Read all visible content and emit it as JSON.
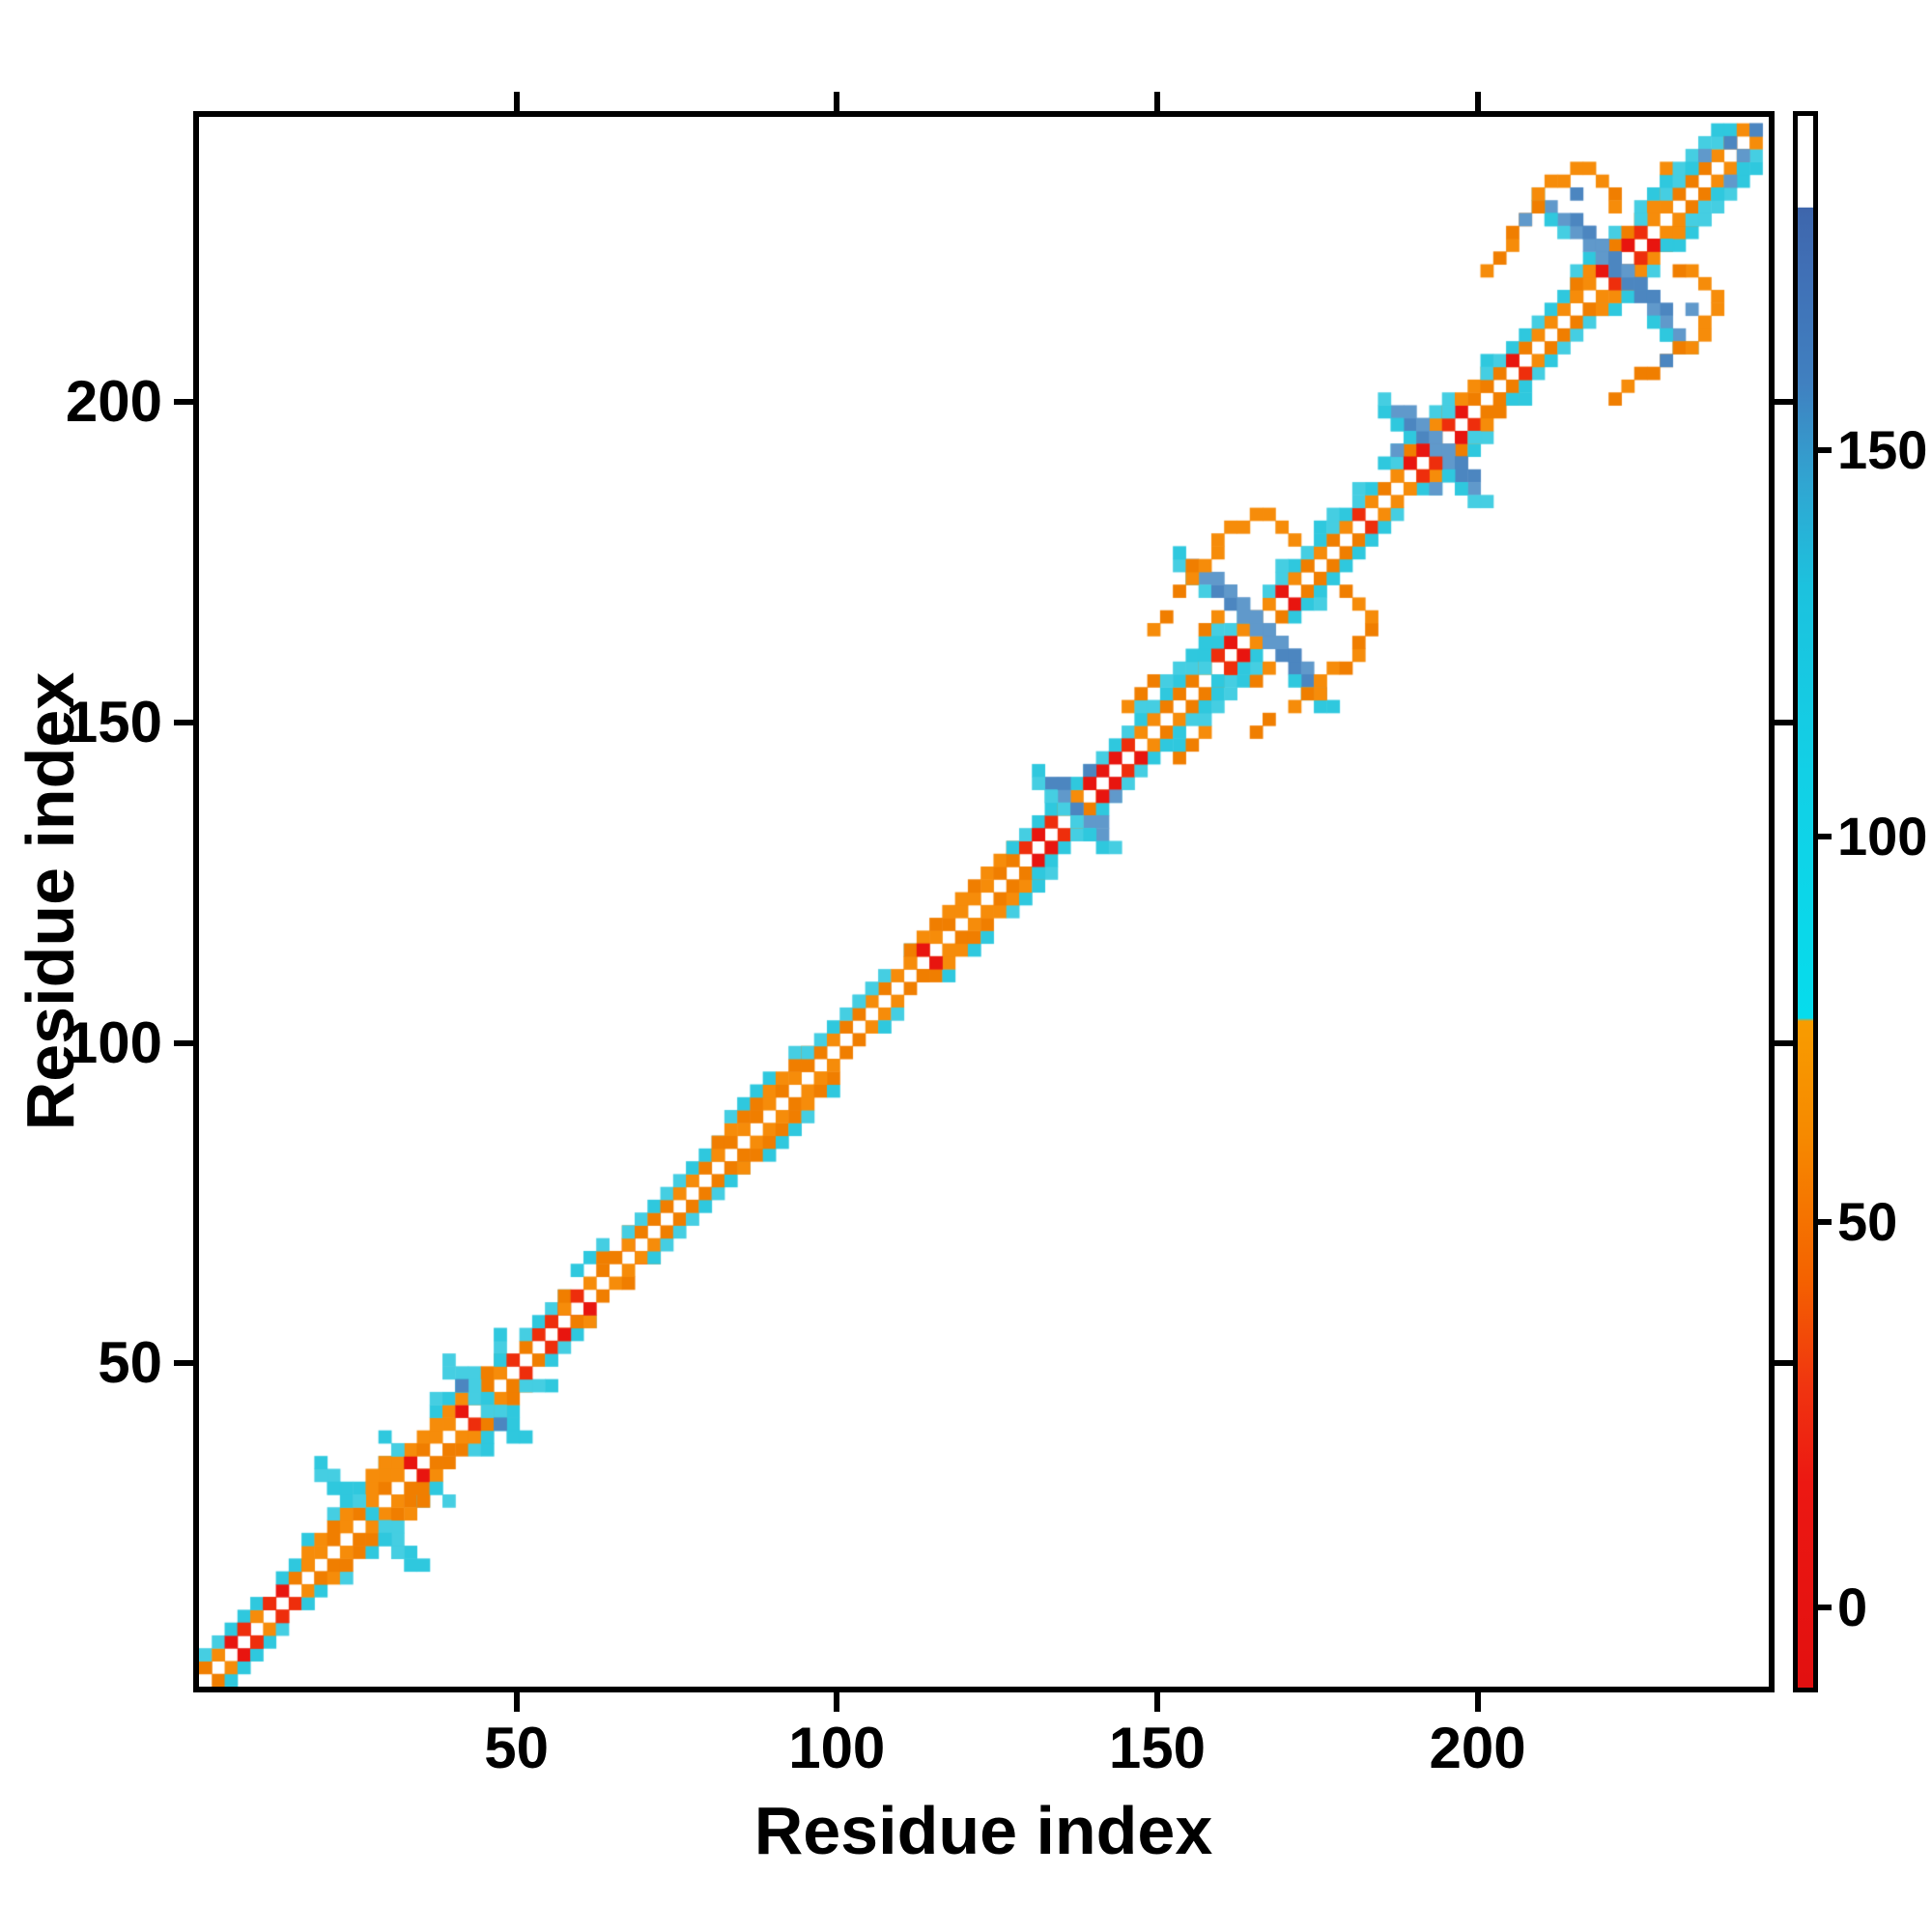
{
  "chart_data": {
    "type": "heatmap",
    "variant": "protein-contact-map",
    "title": "",
    "xlabel": "Residue index",
    "ylabel": "Residue index",
    "x_ticks": [
      50,
      100,
      150,
      200
    ],
    "y_ticks": [
      50,
      100,
      150,
      200
    ],
    "x_range": [
      1,
      245
    ],
    "y_range": [
      1,
      245
    ],
    "grid": false,
    "background": "#ffffff",
    "cell_size_residues": 2,
    "colorbar": {
      "ticks": [
        0,
        50,
        100,
        150
      ],
      "value_range_bottom_to_top": [
        -11,
        194
      ],
      "stops_top_to_bottom": [
        [
          0.0,
          "#FFFFFF"
        ],
        [
          0.058,
          "#FFFFFF"
        ],
        [
          0.0585,
          "#3E66AC"
        ],
        [
          0.1,
          "#4070B6"
        ],
        [
          0.17,
          "#4080C0"
        ],
        [
          0.235,
          "#30A6D2"
        ],
        [
          0.3,
          "#1CC2DE"
        ],
        [
          0.42,
          "#12D0E6"
        ],
        [
          0.574,
          "#06DCEC"
        ],
        [
          0.576,
          "#F89C00"
        ],
        [
          0.65,
          "#F68900"
        ],
        [
          0.74,
          "#F46200"
        ],
        [
          0.81,
          "#F03410"
        ],
        [
          0.87,
          "#EC1812"
        ],
        [
          1.0,
          "#E21010"
        ]
      ]
    },
    "palette": {
      "orange": [
        "#F68C0A",
        "#F07E00"
      ],
      "red": [
        "#EE2E0C",
        "#E8150F"
      ],
      "cyan": [
        "#2FC8DE",
        "#45CEE2"
      ],
      "bright_cyan": "#18D2E6",
      "steel": [
        "#4C86C0",
        "#6099CB"
      ],
      "white": "#FFFFFF"
    },
    "diagonal_band_segments": [
      {
        "start": 2,
        "end": 18,
        "inner": "redmix",
        "red_density": 0.6,
        "off2": "cyan",
        "off2_side": "both"
      },
      {
        "start": 18,
        "end": 34,
        "inner": "orange",
        "red_density": 0.15,
        "off2": "orange",
        "off3": "cyan",
        "off3_side": "both"
      },
      {
        "start": 34,
        "end": 48,
        "inner": "orange",
        "red_density": 0.1,
        "off2": "orange",
        "off3": "cyan",
        "off4": "cyan",
        "off3_side": "both",
        "off4_side": "both"
      },
      {
        "start": 48,
        "end": 58,
        "inner": "redmix",
        "red_density": 0.5,
        "off2": "cyan",
        "off2_side": "both"
      },
      {
        "start": 58,
        "end": 68,
        "inner": "orange",
        "red_density": 0.25,
        "off2": "orange",
        "off3": "cyan",
        "off3_side": "upper"
      },
      {
        "start": 68,
        "end": 82,
        "inner": "orange",
        "red_density": 0.1,
        "off2": "cyan",
        "off2_side": "both"
      },
      {
        "start": 82,
        "end": 96,
        "inner": "orange",
        "red_density": 0.2,
        "off2": "orange",
        "off3": "cyan",
        "off3_side": "both"
      },
      {
        "start": 96,
        "end": 112,
        "inner": "orange",
        "red_density": 0.1,
        "off2": "cyan",
        "off2_side": "upper"
      },
      {
        "start": 112,
        "end": 128,
        "inner": "orange",
        "red_density": 0.25,
        "off2": "orange",
        "off3": "cyan",
        "off3_side": "lower"
      },
      {
        "start": 128,
        "end": 146,
        "inner": "redmix",
        "red_density": 0.45,
        "off2": "cyan",
        "off2_side": "both"
      },
      {
        "start": 146,
        "end": 160,
        "inner": "orange",
        "red_density": 0.3,
        "off2": "cyan",
        "off3": "cyan",
        "off4": "orange",
        "off2_side": "both",
        "off3_side": "both",
        "off4_side": "both"
      },
      {
        "start": 160,
        "end": 174,
        "inner": "orange",
        "red_density": 0.35,
        "off2": "cyan",
        "off2_side": "both"
      },
      {
        "start": 174,
        "end": 188,
        "inner": "orange",
        "red_density": 0.2,
        "off2": "cyan",
        "off3": "cyan",
        "off3_side": "upper"
      },
      {
        "start": 188,
        "end": 202,
        "inner": "orange",
        "red_density": 0.3,
        "off2": "orange",
        "off3": "cyan",
        "off3_side": "both"
      },
      {
        "start": 202,
        "end": 216,
        "inner": "orange",
        "red_density": 0.35,
        "off2": "cyan",
        "off2_side": "both"
      },
      {
        "start": 216,
        "end": 230,
        "inner": "orange",
        "red_density": 0.25,
        "off2": "orange",
        "off3": "cyan",
        "off3_side": "both"
      },
      {
        "start": 230,
        "end": 245,
        "inner": "orange",
        "red_density": 0.2,
        "off2": "cyan",
        "off3": "cyan",
        "off4": "orange",
        "off2_side": "both",
        "off3_side": "both",
        "off4_side": "upper"
      }
    ],
    "antidiagonal_crosses": [
      {
        "center_residue": 28,
        "arm_cells": 3,
        "color": "cyan",
        "thick": 1
      },
      {
        "center_residue": 45,
        "arm_cells": 2,
        "color": "cyan",
        "thick": 1
      },
      {
        "center_residue": 138,
        "arm_cells": 2,
        "color": "steel",
        "thick": 1
      },
      {
        "center_residue": 166,
        "arm_cells": 5,
        "color": "steel",
        "thick": 2
      },
      {
        "center_residue": 193,
        "arm_cells": 3,
        "color": "steel",
        "thick": 2
      },
      {
        "center_residue": 222,
        "arm_cells": 5,
        "color": "steel",
        "thick": 2
      }
    ],
    "feature_dots": {
      "orange": [
        [
          154,
          172
        ],
        [
          156,
          174
        ],
        [
          156,
          176
        ],
        [
          158,
          176
        ],
        [
          160,
          178
        ],
        [
          160,
          180
        ],
        [
          162,
          182
        ],
        [
          166,
          184
        ],
        [
          168,
          184
        ],
        [
          170,
          182
        ],
        [
          172,
          180
        ],
        [
          152,
          168
        ],
        [
          150,
          166
        ],
        [
          164,
          181
        ],
        [
          206,
          226
        ],
        [
          206,
          228
        ],
        [
          208,
          230
        ],
        [
          210,
          232
        ],
        [
          210,
          234
        ],
        [
          212,
          236
        ],
        [
          214,
          236
        ],
        [
          216,
          238
        ],
        [
          218,
          238
        ],
        [
          220,
          236
        ],
        [
          222,
          234
        ],
        [
          222,
          232
        ],
        [
          204,
          224
        ],
        [
          202,
          222
        ],
        [
          33,
          27
        ],
        [
          35,
          29
        ]
      ],
      "cyan": [
        [
          103,
          107
        ],
        [
          105,
          109
        ],
        [
          37,
          31
        ],
        [
          39,
          29
        ],
        [
          160,
          157
        ],
        [
          170,
          176
        ],
        [
          196,
          199
        ],
        [
          225,
          229
        ],
        [
          233,
          237
        ]
      ],
      "steel": [
        [
          187,
          194
        ],
        [
          136,
          142
        ],
        [
          140,
          144
        ],
        [
          208,
          229
        ],
        [
          215,
          233
        ],
        [
          235,
          240
        ],
        [
          239,
          242
        ],
        [
          243,
          244
        ],
        [
          42,
          48
        ]
      ],
      "red": [
        [
          160,
          162
        ],
        [
          162,
          164
        ],
        [
          189,
          191
        ],
        [
          191,
          193
        ],
        [
          223,
          225
        ],
        [
          225,
          227
        ],
        [
          113,
          115
        ],
        [
          7,
          9
        ],
        [
          11,
          13
        ],
        [
          55,
          57
        ],
        [
          131,
          133
        ],
        [
          139,
          141
        ],
        [
          205,
          207
        ]
      ]
    }
  },
  "axes": {
    "x_title": "Residue index",
    "y_title": "Residue index"
  }
}
